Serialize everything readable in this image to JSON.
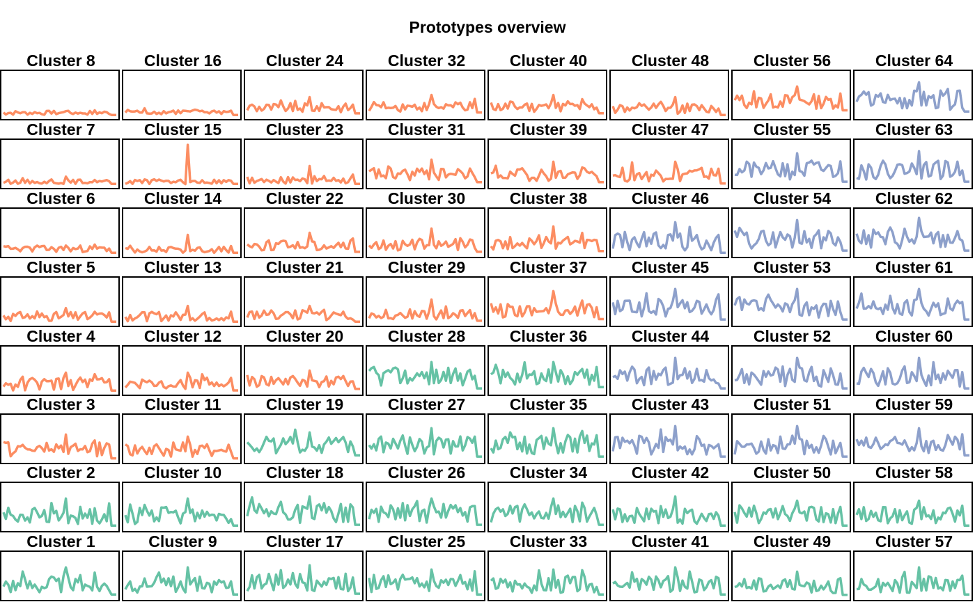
{
  "title": "Prototypes overview",
  "colors": {
    "orange": "#FC8D62",
    "green": "#66C2A5",
    "blue": "#8DA0CB"
  },
  "chart_data": {
    "type": "line",
    "title": "Prototypes overview",
    "grid": false,
    "layout_rows": [
      [
        8,
        16,
        24,
        32,
        40,
        48,
        56,
        64
      ],
      [
        7,
        15,
        23,
        31,
        39,
        47,
        55,
        63
      ],
      [
        6,
        14,
        22,
        30,
        38,
        46,
        54,
        62
      ],
      [
        5,
        13,
        21,
        29,
        37,
        45,
        53,
        61
      ],
      [
        4,
        12,
        20,
        28,
        36,
        44,
        52,
        60
      ],
      [
        3,
        11,
        19,
        27,
        35,
        43,
        51,
        59
      ],
      [
        2,
        10,
        18,
        26,
        34,
        42,
        50,
        58
      ],
      [
        1,
        9,
        17,
        25,
        33,
        41,
        49,
        57
      ]
    ],
    "panels": [
      {
        "title": "Cluster 8",
        "color": "orange",
        "level": 0.08,
        "amp": 0.1,
        "spike": 0.12
      },
      {
        "title": "Cluster 16",
        "color": "orange",
        "level": 0.1,
        "amp": 0.12,
        "spike": 0.12
      },
      {
        "title": "Cluster 24",
        "color": "orange",
        "level": 0.2,
        "amp": 0.22,
        "spike": 0.45
      },
      {
        "title": "Cluster 32",
        "color": "orange",
        "level": 0.22,
        "amp": 0.22,
        "spike": 0.5
      },
      {
        "title": "Cluster 40",
        "color": "orange",
        "level": 0.22,
        "amp": 0.25,
        "spike": 0.5
      },
      {
        "title": "Cluster 48",
        "color": "orange",
        "level": 0.18,
        "amp": 0.25,
        "spike": 0.45
      },
      {
        "title": "Cluster 56",
        "color": "orange",
        "level": 0.35,
        "amp": 0.35,
        "spike": 0.7
      },
      {
        "title": "Cluster 64",
        "color": "blue",
        "level": 0.38,
        "amp": 0.45,
        "spike": 0.8
      },
      {
        "title": "Cluster 7",
        "color": "orange",
        "level": 0.08,
        "amp": 0.1,
        "spike": 0.2
      },
      {
        "title": "Cluster 15",
        "color": "orange",
        "level": 0.08,
        "amp": 0.12,
        "spike": 0.95
      },
      {
        "title": "Cluster 23",
        "color": "orange",
        "level": 0.12,
        "amp": 0.18,
        "spike": 0.45
      },
      {
        "title": "Cluster 31",
        "color": "orange",
        "level": 0.25,
        "amp": 0.3,
        "spike": 0.6
      },
      {
        "title": "Cluster 39",
        "color": "orange",
        "level": 0.25,
        "amp": 0.3,
        "spike": 0.55
      },
      {
        "title": "Cluster 47",
        "color": "orange",
        "level": 0.25,
        "amp": 0.35,
        "spike": 0.55
      },
      {
        "title": "Cluster 55",
        "color": "blue",
        "level": 0.35,
        "amp": 0.45,
        "spike": 0.75
      },
      {
        "title": "Cluster 63",
        "color": "blue",
        "level": 0.35,
        "amp": 0.45,
        "spike": 0.8
      },
      {
        "title": "Cluster 6",
        "color": "orange",
        "level": 0.12,
        "amp": 0.15,
        "spike": 0.2
      },
      {
        "title": "Cluster 14",
        "color": "orange",
        "level": 0.1,
        "amp": 0.15,
        "spike": 0.45
      },
      {
        "title": "Cluster 22",
        "color": "orange",
        "level": 0.2,
        "amp": 0.25,
        "spike": 0.5
      },
      {
        "title": "Cluster 30",
        "color": "orange",
        "level": 0.22,
        "amp": 0.28,
        "spike": 0.6
      },
      {
        "title": "Cluster 38",
        "color": "orange",
        "level": 0.25,
        "amp": 0.3,
        "spike": 0.65
      },
      {
        "title": "Cluster 46",
        "color": "blue",
        "level": 0.3,
        "amp": 0.45,
        "spike": 0.75
      },
      {
        "title": "Cluster 54",
        "color": "blue",
        "level": 0.35,
        "amp": 0.45,
        "spike": 0.8
      },
      {
        "title": "Cluster 62",
        "color": "blue",
        "level": 0.35,
        "amp": 0.45,
        "spike": 0.85
      },
      {
        "title": "Cluster 5",
        "color": "orange",
        "level": 0.15,
        "amp": 0.22,
        "spike": 0.35
      },
      {
        "title": "Cluster 13",
        "color": "orange",
        "level": 0.15,
        "amp": 0.22,
        "spike": 0.4
      },
      {
        "title": "Cluster 21",
        "color": "orange",
        "level": 0.18,
        "amp": 0.25,
        "spike": 0.4
      },
      {
        "title": "Cluster 29",
        "color": "orange",
        "level": 0.2,
        "amp": 0.25,
        "spike": 0.55
      },
      {
        "title": "Cluster 37",
        "color": "orange",
        "level": 0.3,
        "amp": 0.35,
        "spike": 0.75
      },
      {
        "title": "Cluster 45",
        "color": "blue",
        "level": 0.35,
        "amp": 0.45,
        "spike": 0.8
      },
      {
        "title": "Cluster 53",
        "color": "blue",
        "level": 0.35,
        "amp": 0.45,
        "spike": 0.8
      },
      {
        "title": "Cluster 61",
        "color": "blue",
        "level": 0.35,
        "amp": 0.45,
        "spike": 0.8
      },
      {
        "title": "Cluster 4",
        "color": "orange",
        "level": 0.18,
        "amp": 0.3,
        "spike": 0.45
      },
      {
        "title": "Cluster 12",
        "color": "orange",
        "level": 0.2,
        "amp": 0.28,
        "spike": 0.45
      },
      {
        "title": "Cluster 20",
        "color": "orange",
        "level": 0.25,
        "amp": 0.3,
        "spike": 0.5
      },
      {
        "title": "Cluster 28",
        "color": "green",
        "level": 0.35,
        "amp": 0.45,
        "spike": 0.7
      },
      {
        "title": "Cluster 36",
        "color": "green",
        "level": 0.35,
        "amp": 0.4,
        "spike": 0.7
      },
      {
        "title": "Cluster 44",
        "color": "blue",
        "level": 0.35,
        "amp": 0.45,
        "spike": 0.8
      },
      {
        "title": "Cluster 52",
        "color": "blue",
        "level": 0.35,
        "amp": 0.45,
        "spike": 0.8
      },
      {
        "title": "Cluster 60",
        "color": "blue",
        "level": 0.35,
        "amp": 0.45,
        "spike": 0.8
      },
      {
        "title": "Cluster 3",
        "color": "orange",
        "level": 0.25,
        "amp": 0.35,
        "spike": 0.6
      },
      {
        "title": "Cluster 11",
        "color": "orange",
        "level": 0.25,
        "amp": 0.35,
        "spike": 0.55
      },
      {
        "title": "Cluster 19",
        "color": "green",
        "level": 0.35,
        "amp": 0.4,
        "spike": 0.65
      },
      {
        "title": "Cluster 27",
        "color": "green",
        "level": 0.35,
        "amp": 0.45,
        "spike": 0.75
      },
      {
        "title": "Cluster 35",
        "color": "green",
        "level": 0.35,
        "amp": 0.45,
        "spike": 0.75
      },
      {
        "title": "Cluster 43",
        "color": "blue",
        "level": 0.35,
        "amp": 0.45,
        "spike": 0.8
      },
      {
        "title": "Cluster 51",
        "color": "blue",
        "level": 0.35,
        "amp": 0.45,
        "spike": 0.8
      },
      {
        "title": "Cluster 59",
        "color": "blue",
        "level": 0.35,
        "amp": 0.4,
        "spike": 0.75
      },
      {
        "title": "Cluster 2",
        "color": "green",
        "level": 0.3,
        "amp": 0.4,
        "spike": 0.7
      },
      {
        "title": "Cluster 10",
        "color": "green",
        "level": 0.3,
        "amp": 0.4,
        "spike": 0.7
      },
      {
        "title": "Cluster 18",
        "color": "green",
        "level": 0.35,
        "amp": 0.45,
        "spike": 0.75
      },
      {
        "title": "Cluster 26",
        "color": "green",
        "level": 0.35,
        "amp": 0.45,
        "spike": 0.7
      },
      {
        "title": "Cluster 34",
        "color": "green",
        "level": 0.35,
        "amp": 0.45,
        "spike": 0.7
      },
      {
        "title": "Cluster 42",
        "color": "green",
        "level": 0.3,
        "amp": 0.4,
        "spike": 0.75
      },
      {
        "title": "Cluster 50",
        "color": "green",
        "level": 0.3,
        "amp": 0.4,
        "spike": 0.65
      },
      {
        "title": "Cluster 58",
        "color": "green",
        "level": 0.3,
        "amp": 0.4,
        "spike": 0.65
      },
      {
        "title": "Cluster 1",
        "color": "green",
        "level": 0.3,
        "amp": 0.4,
        "spike": 0.7
      },
      {
        "title": "Cluster 9",
        "color": "green",
        "level": 0.3,
        "amp": 0.4,
        "spike": 0.7
      },
      {
        "title": "Cluster 17",
        "color": "green",
        "level": 0.35,
        "amp": 0.45,
        "spike": 0.75
      },
      {
        "title": "Cluster 25",
        "color": "green",
        "level": 0.3,
        "amp": 0.4,
        "spike": 0.65
      },
      {
        "title": "Cluster 33",
        "color": "green",
        "level": 0.3,
        "amp": 0.4,
        "spike": 0.65
      },
      {
        "title": "Cluster 41",
        "color": "green",
        "level": 0.3,
        "amp": 0.4,
        "spike": 0.7
      },
      {
        "title": "Cluster 49",
        "color": "green",
        "level": 0.28,
        "amp": 0.38,
        "spike": 0.6
      },
      {
        "title": "Cluster 57",
        "color": "green",
        "level": 0.3,
        "amp": 0.4,
        "spike": 0.7
      }
    ]
  }
}
